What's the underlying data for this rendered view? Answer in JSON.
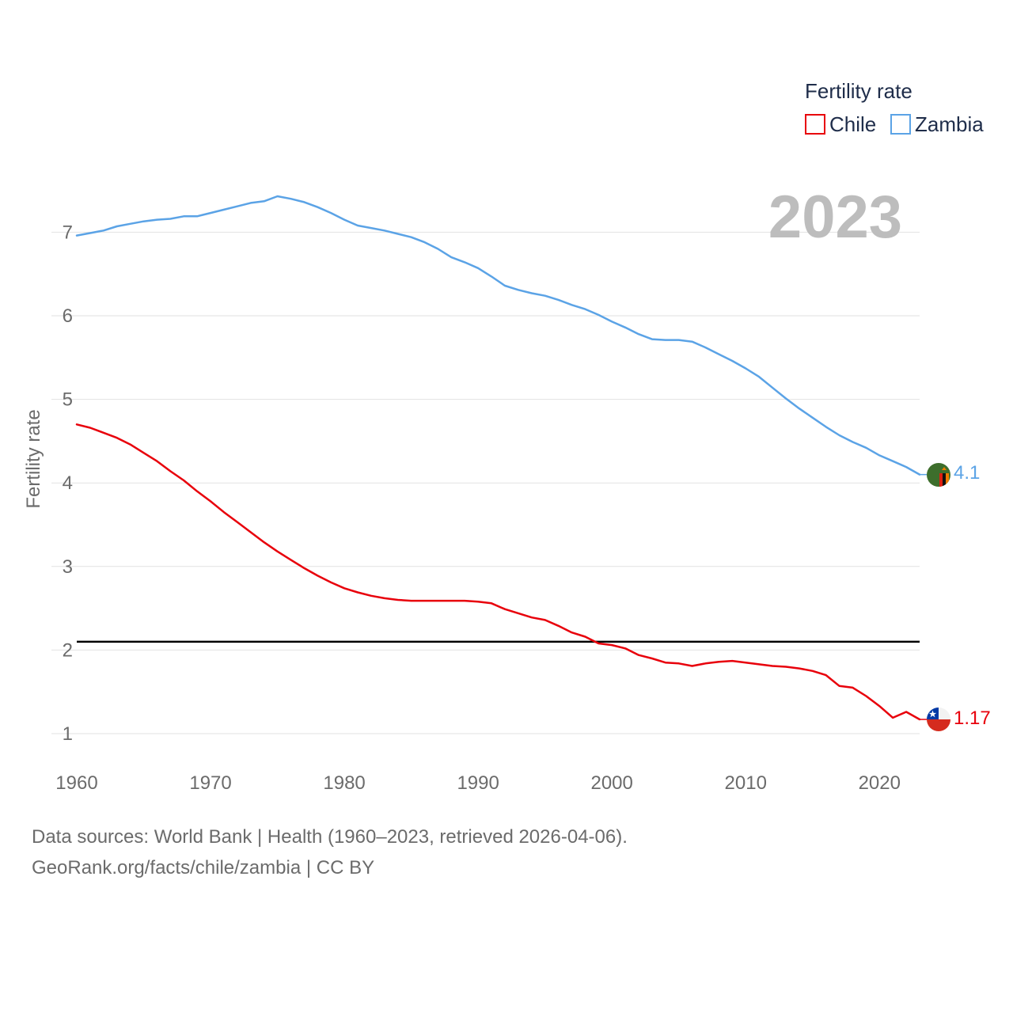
{
  "chart_data": {
    "type": "line",
    "title": "",
    "current_year": "2023",
    "xlabel": "",
    "ylabel": "Fertility rate",
    "xlim": [
      1960,
      2023
    ],
    "ylim": [
      0.5,
      7.8
    ],
    "x_ticks": [
      1960,
      1970,
      1980,
      1990,
      2000,
      2010,
      2020
    ],
    "y_ticks": [
      1,
      2,
      3,
      4,
      5,
      6,
      7
    ],
    "grid": true,
    "legend": {
      "title": "Fertility rate",
      "position": "top-right"
    },
    "reference_line": {
      "value": 2.1,
      "color": "#000000"
    },
    "x": [
      1960,
      1961,
      1962,
      1963,
      1964,
      1965,
      1966,
      1967,
      1968,
      1969,
      1970,
      1971,
      1972,
      1973,
      1974,
      1975,
      1976,
      1977,
      1978,
      1979,
      1980,
      1981,
      1982,
      1983,
      1984,
      1985,
      1986,
      1987,
      1988,
      1989,
      1990,
      1991,
      1992,
      1993,
      1994,
      1995,
      1996,
      1997,
      1998,
      1999,
      2000,
      2001,
      2002,
      2003,
      2004,
      2005,
      2006,
      2007,
      2008,
      2009,
      2010,
      2011,
      2012,
      2013,
      2014,
      2015,
      2016,
      2017,
      2018,
      2019,
      2020,
      2021,
      2022,
      2023
    ],
    "series": [
      {
        "name": "Chile",
        "color": "#e8000b",
        "end_label": "1.17",
        "flag": "chile",
        "values": [
          4.7,
          4.66,
          4.6,
          4.54,
          4.46,
          4.36,
          4.26,
          4.14,
          4.03,
          3.9,
          3.78,
          3.65,
          3.53,
          3.41,
          3.29,
          3.18,
          3.08,
          2.98,
          2.89,
          2.81,
          2.74,
          2.69,
          2.65,
          2.62,
          2.6,
          2.59,
          2.59,
          2.59,
          2.59,
          2.59,
          2.58,
          2.56,
          2.49,
          2.44,
          2.39,
          2.36,
          2.29,
          2.21,
          2.16,
          2.08,
          2.06,
          2.02,
          1.94,
          1.9,
          1.85,
          1.84,
          1.81,
          1.84,
          1.86,
          1.87,
          1.85,
          1.83,
          1.81,
          1.8,
          1.78,
          1.75,
          1.7,
          1.57,
          1.55,
          1.45,
          1.33,
          1.19,
          1.26,
          1.17
        ]
      },
      {
        "name": "Zambia",
        "color": "#5ba3e6",
        "end_label": "4.1",
        "flag": "zambia",
        "values": [
          6.96,
          6.99,
          7.02,
          7.07,
          7.1,
          7.13,
          7.15,
          7.16,
          7.19,
          7.19,
          7.23,
          7.27,
          7.31,
          7.35,
          7.37,
          7.43,
          7.4,
          7.36,
          7.3,
          7.23,
          7.15,
          7.08,
          7.05,
          7.02,
          6.98,
          6.94,
          6.88,
          6.8,
          6.7,
          6.64,
          6.57,
          6.47,
          6.36,
          6.31,
          6.27,
          6.24,
          6.19,
          6.13,
          6.08,
          6.01,
          5.93,
          5.86,
          5.78,
          5.72,
          5.71,
          5.71,
          5.69,
          5.62,
          5.54,
          5.46,
          5.37,
          5.27,
          5.14,
          5.01,
          4.89,
          4.78,
          4.67,
          4.57,
          4.49,
          4.42,
          4.33,
          4.26,
          4.19,
          4.1
        ]
      }
    ]
  },
  "footer": {
    "line1": "Data sources: World Bank | Health (1960–2023, retrieved 2026-04-06).",
    "line2": "GeoRank.org/facts/chile/zambia | CC BY"
  }
}
